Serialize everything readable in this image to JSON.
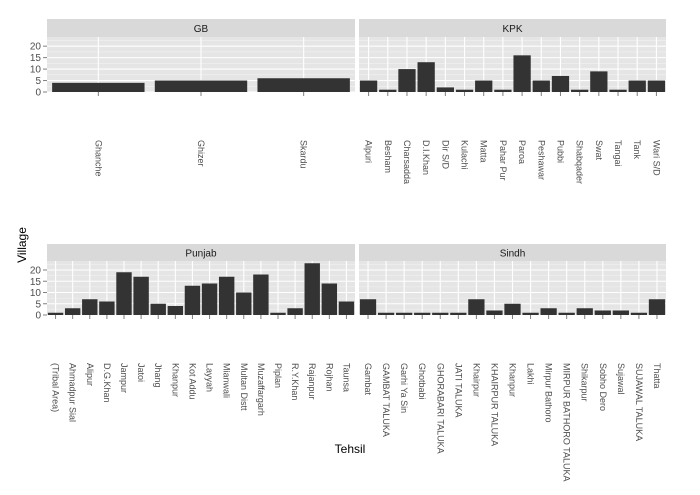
{
  "chart_data": {
    "type": "bar",
    "layout": "faceted",
    "xlabel": "Tehsil",
    "ylabel": "Village",
    "ylim": [
      0,
      24
    ],
    "yticks": [
      0,
      5,
      10,
      15,
      20
    ],
    "grid": true,
    "facets": [
      {
        "name": "GB",
        "categories": [
          "Ghanche",
          "Ghizer",
          "Skardu"
        ],
        "values": [
          4,
          5,
          6
        ]
      },
      {
        "name": "KPK",
        "categories": [
          "Alpuri",
          "Besham",
          "Charsadda",
          "D.I.Khan",
          "Dir S/D",
          "Kulachi",
          "Matta",
          "Pahar Pur",
          "Paroa",
          "Peshawar",
          "Pubbi",
          "Shabqader",
          "Swat",
          "Tangai",
          "Tank",
          "Wari S/D"
        ],
        "values": [
          5,
          1,
          10,
          13,
          2,
          1,
          5,
          1,
          16,
          5,
          7,
          1,
          9,
          1,
          5,
          5
        ]
      },
      {
        "name": "Punjab",
        "categories": [
          "(Tribal Area)",
          "Ahmadpur Sial",
          "Alipur",
          "D.G.Khan",
          "Jampur",
          "Jatoi",
          "Jhang",
          "Khanpur",
          "Kot Addu",
          "Layyah",
          "Mianwali",
          "Multan Distt",
          "Muzaffargarh",
          "Piplan",
          "R.Y.Khan",
          "Rajanpur",
          "Rojhan",
          "Taunsa"
        ],
        "values": [
          1,
          3,
          7,
          6,
          19,
          17,
          5,
          4,
          13,
          14,
          17,
          10,
          18,
          1,
          3,
          23,
          14,
          6
        ]
      },
      {
        "name": "Sindh",
        "categories": [
          "Gambat",
          "GAMBAT TALUKA",
          "Garhi Ya Sin",
          "Ghotbabi",
          "GHORABARI TALUKA",
          "JATI TALUKA",
          "Khairpur",
          "KHAIRPUR TALUKA",
          "Khanpur",
          "Lakhi",
          "Mirpur Bathoro",
          "MIRPUR BATHORO TALUKA",
          "Shikarpur",
          "Sobho Dero",
          "Sujawal",
          "SUJAWAL TALUKA",
          "Thatta"
        ],
        "values": [
          7,
          1,
          1,
          1,
          1,
          1,
          7,
          2,
          5,
          1,
          3,
          1,
          3,
          2,
          2,
          1,
          7
        ]
      }
    ]
  }
}
